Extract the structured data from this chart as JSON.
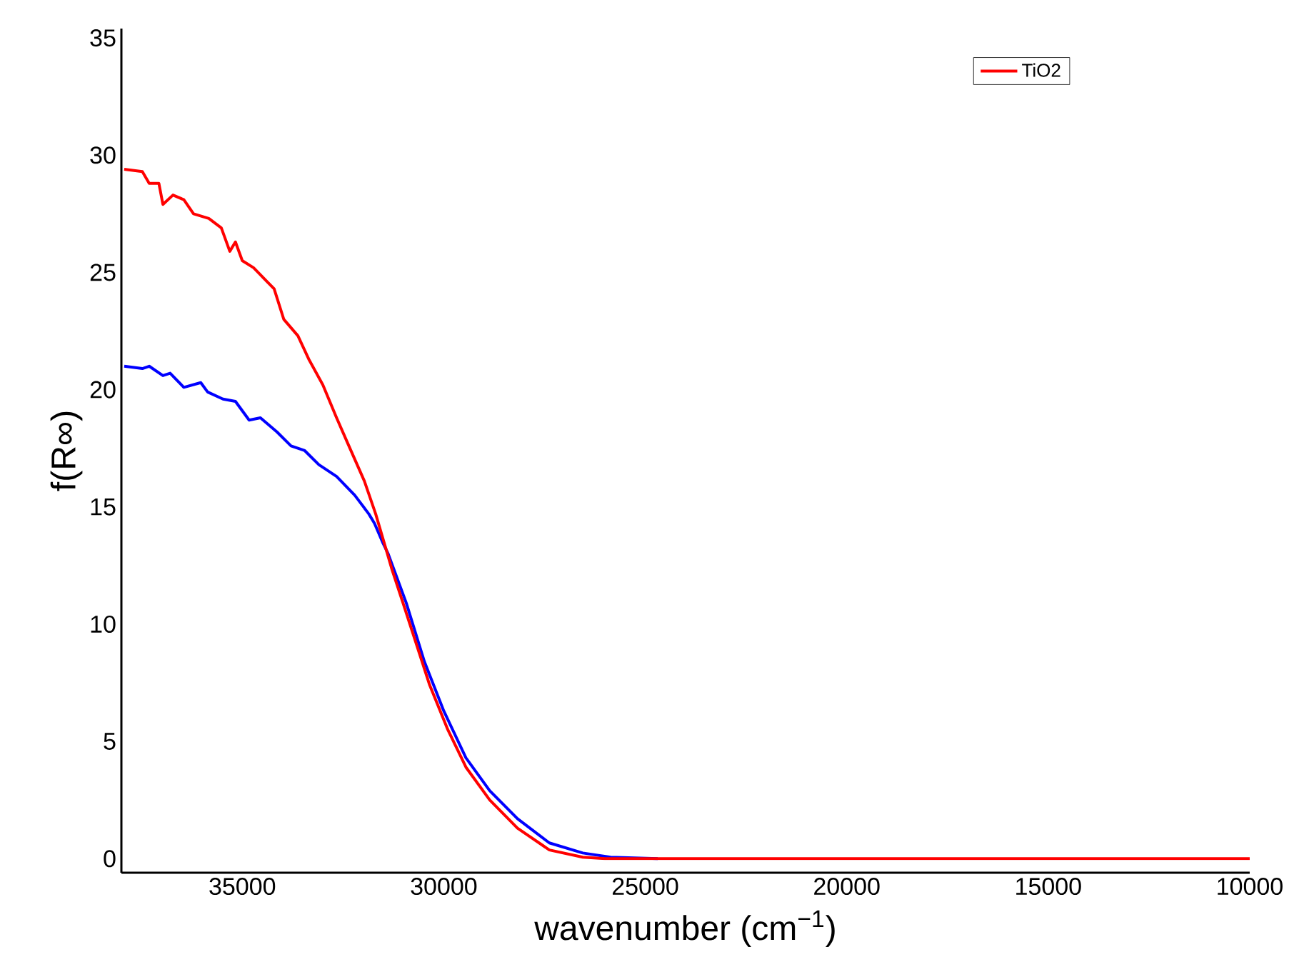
{
  "chart_data": {
    "type": "line",
    "xlabel": "wavenumber (cm$^{−1}$)",
    "ylabel": "f(R∞)",
    "xlim": [
      38000,
      10000
    ],
    "ylim": [
      -0.6,
      35.4
    ],
    "xticks": [
      35000,
      30000,
      25000,
      20000,
      15000,
      10000
    ],
    "yticks": [
      0,
      5,
      10,
      15,
      20,
      25,
      30,
      35
    ],
    "legend": "top right",
    "grid": false,
    "marker": "none",
    "line_style": "solid",
    "series": [
      {
        "color": "#0000ff",
        "x": [
          37930,
          37480,
          37310,
          36970,
          36790,
          36450,
          36030,
          35860,
          35480,
          35170,
          34830,
          34550,
          34140,
          33790,
          33450,
          33100,
          32660,
          32210,
          31860,
          31720,
          31520,
          31380,
          30930,
          30480,
          30000,
          29450,
          28860,
          28170,
          27380,
          26550,
          25860,
          24690
        ],
        "values": [
          21.0,
          20.9,
          21.0,
          20.6,
          20.7,
          20.1,
          20.3,
          19.9,
          19.6,
          19.5,
          18.7,
          18.8,
          18.2,
          17.6,
          17.4,
          16.8,
          16.3,
          15.5,
          14.7,
          14.3,
          13.5,
          13.0,
          10.9,
          8.4,
          6.3,
          4.3,
          2.9,
          1.7,
          0.67,
          0.24,
          0.06,
          0
        ]
      },
      {
        "name": "TiO2",
        "color": "#ff0000",
        "x": [
          37930,
          37480,
          37310,
          37070,
          36970,
          36720,
          36450,
          36210,
          35830,
          35520,
          35310,
          35170,
          35000,
          34720,
          34380,
          34210,
          33970,
          33620,
          33350,
          33000,
          32660,
          32380,
          31970,
          31690,
          31450,
          31280,
          31030,
          30690,
          30350,
          29900,
          29450,
          28860,
          28170,
          27380,
          26550,
          26000,
          10000
        ],
        "values": [
          29.4,
          29.3,
          28.8,
          28.8,
          27.9,
          28.3,
          28.1,
          27.5,
          27.3,
          26.9,
          25.9,
          26.3,
          25.5,
          25.2,
          24.6,
          24.3,
          23.0,
          22.3,
          21.3,
          20.2,
          18.8,
          17.7,
          16.1,
          14.7,
          13.3,
          12.3,
          11.0,
          9.2,
          7.4,
          5.5,
          3.9,
          2.5,
          1.3,
          0.37,
          0.06,
          0,
          0
        ]
      }
    ]
  }
}
